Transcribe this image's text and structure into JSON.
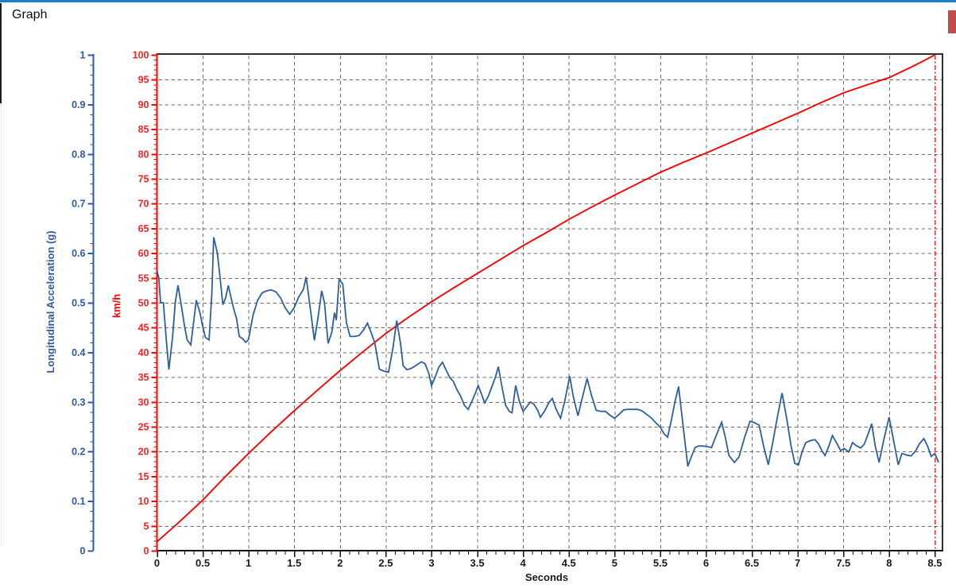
{
  "window": {
    "title": "Graph",
    "top_border_color": "#1b7cd0",
    "fragment_color": "#c24c4c"
  },
  "chart_data": {
    "type": "line",
    "title": "Graph",
    "xlabel": "Seconds",
    "x_axis": {
      "label": "Seconds",
      "lim": [
        0,
        8.5
      ],
      "tick_values": [
        0,
        0.5,
        1,
        1.5,
        2,
        2.5,
        3,
        3.5,
        4,
        4.5,
        5,
        5.5,
        6,
        6.5,
        7,
        7.5,
        8,
        8.5
      ],
      "tick_labels": [
        "0",
        "0.5",
        "1",
        "1.5",
        "2",
        "2.5",
        "3",
        "3.5",
        "4",
        "4.5",
        "5",
        "5.5",
        "6",
        "6.5",
        "7",
        "7.5",
        "8",
        "8.5"
      ],
      "minor_step": 0.1,
      "color": "#1a1a1a"
    },
    "left_axis": {
      "label": "Longitudinal Acceleration (g)",
      "lim": [
        0,
        1
      ],
      "tick_values": [
        0,
        0.1,
        0.2,
        0.3,
        0.4,
        0.5,
        0.6,
        0.7,
        0.8,
        0.9,
        1
      ],
      "tick_labels": [
        "0",
        "0.1",
        "0.2",
        "0.3",
        "0.4",
        "0.5",
        "0.6",
        "0.7",
        "0.8",
        "0.9",
        "1"
      ],
      "minor_step": 0.02,
      "color": "#2e5aa5"
    },
    "right_axis": {
      "label": "km/h",
      "lim": [
        0,
        100
      ],
      "tick_values": [
        0,
        5,
        10,
        15,
        20,
        25,
        30,
        35,
        40,
        45,
        50,
        55,
        60,
        65,
        70,
        75,
        80,
        85,
        90,
        95,
        100
      ],
      "tick_labels": [
        "0",
        "5",
        "10",
        "15",
        "20",
        "25",
        "30",
        "35",
        "40",
        "45",
        "50",
        "55",
        "60",
        "65",
        "70",
        "75",
        "80",
        "85",
        "90",
        "95",
        "100"
      ],
      "minor_step": 1,
      "color": "#ff0000"
    },
    "grid": {
      "color": "#6f6f6f",
      "dash": "4.5 3.5"
    },
    "cursor": {
      "x": 8.5,
      "color": "#ee3333"
    },
    "series": [
      {
        "name": "speed-kmh",
        "axis": "right",
        "color": "#ff0000",
        "x": [
          0,
          0.25,
          0.5,
          0.75,
          1,
          1.25,
          1.5,
          1.75,
          2,
          2.25,
          2.5,
          2.75,
          3,
          3.25,
          3.5,
          3.75,
          4,
          4.25,
          4.5,
          4.75,
          5,
          5.25,
          5.5,
          5.75,
          6,
          6.25,
          6.5,
          6.75,
          7,
          7.25,
          7.5,
          7.75,
          8,
          8.25,
          8.4,
          8.5
        ],
        "y": [
          1.8,
          5.9,
          10.2,
          15.0,
          19.6,
          24.0,
          28.2,
          32.3,
          36.3,
          40.1,
          43.8,
          47.1,
          50.2,
          53.1,
          55.9,
          58.7,
          61.5,
          64.1,
          66.8,
          69.3,
          71.7,
          74.0,
          76.3,
          78.3,
          80.2,
          82.2,
          84.2,
          86.2,
          88.2,
          90.3,
          92.3,
          93.9,
          95.4,
          97.6,
          99.0,
          100.0
        ]
      },
      {
        "name": "longitudinal-acceleration-g",
        "axis": "left",
        "color": "#2d5f9c",
        "x": [
          0,
          0.02,
          0.04,
          0.07,
          0.1,
          0.13,
          0.17,
          0.2,
          0.23,
          0.27,
          0.3,
          0.33,
          0.37,
          0.4,
          0.43,
          0.47,
          0.5,
          0.53,
          0.57,
          0.6,
          0.62,
          0.66,
          0.69,
          0.72,
          0.75,
          0.78,
          0.81,
          0.84,
          0.87,
          0.9,
          0.94,
          0.97,
          1.0,
          1.05,
          1.1,
          1.15,
          1.2,
          1.25,
          1.3,
          1.35,
          1.4,
          1.45,
          1.5,
          1.55,
          1.6,
          1.63,
          1.66,
          1.69,
          1.72,
          1.76,
          1.8,
          1.83,
          1.87,
          1.91,
          1.94,
          1.96,
          1.99,
          2.03,
          2.07,
          2.11,
          2.16,
          2.21,
          2.26,
          2.3,
          2.34,
          2.38,
          2.43,
          2.48,
          2.53,
          2.58,
          2.62,
          2.66,
          2.69,
          2.73,
          2.77,
          2.81,
          2.85,
          2.89,
          2.93,
          2.97,
          3.0,
          3.04,
          3.08,
          3.12,
          3.16,
          3.2,
          3.24,
          3.28,
          3.32,
          3.36,
          3.4,
          3.44,
          3.48,
          3.51,
          3.55,
          3.58,
          3.62,
          3.66,
          3.7,
          3.73,
          3.77,
          3.81,
          3.85,
          3.88,
          3.92,
          3.96,
          4.0,
          4.04,
          4.08,
          4.12,
          4.16,
          4.19,
          4.24,
          4.28,
          4.32,
          4.36,
          4.41,
          4.46,
          4.51,
          4.55,
          4.6,
          4.65,
          4.7,
          4.75,
          4.8,
          4.85,
          4.9,
          4.95,
          5.0,
          5.05,
          5.1,
          5.15,
          5.2,
          5.25,
          5.3,
          5.35,
          5.4,
          5.45,
          5.5,
          5.54,
          5.58,
          5.62,
          5.66,
          5.7,
          5.75,
          5.8,
          5.84,
          5.88,
          5.92,
          5.97,
          6.01,
          6.06,
          6.11,
          6.17,
          6.21,
          6.25,
          6.31,
          6.36,
          6.42,
          6.48,
          6.53,
          6.58,
          6.63,
          6.68,
          6.73,
          6.78,
          6.83,
          6.88,
          6.93,
          6.97,
          7.01,
          7.05,
          7.09,
          7.14,
          7.19,
          7.23,
          7.27,
          7.3,
          7.34,
          7.38,
          7.43,
          7.47,
          7.51,
          7.56,
          7.6,
          7.64,
          7.69,
          7.73,
          7.77,
          7.81,
          7.85,
          7.89,
          7.94,
          8.0,
          8.05,
          8.1,
          8.14,
          8.19,
          8.24,
          8.29,
          8.33,
          8.38,
          8.42,
          8.46,
          8.5,
          8.54
        ],
        "y": [
          0.565,
          0.55,
          0.5,
          0.5,
          0.43,
          0.365,
          0.43,
          0.5,
          0.535,
          0.49,
          0.455,
          0.425,
          0.415,
          0.46,
          0.505,
          0.48,
          0.452,
          0.43,
          0.425,
          0.52,
          0.632,
          0.6,
          0.55,
          0.496,
          0.51,
          0.535,
          0.51,
          0.487,
          0.468,
          0.432,
          0.427,
          0.42,
          0.426,
          0.475,
          0.505,
          0.52,
          0.524,
          0.526,
          0.522,
          0.51,
          0.49,
          0.477,
          0.49,
          0.512,
          0.527,
          0.552,
          0.51,
          0.468,
          0.424,
          0.47,
          0.524,
          0.5,
          0.418,
          0.44,
          0.48,
          0.465,
          0.547,
          0.538,
          0.46,
          0.432,
          0.432,
          0.434,
          0.446,
          0.459,
          0.44,
          0.419,
          0.366,
          0.362,
          0.36,
          0.41,
          0.464,
          0.42,
          0.373,
          0.365,
          0.367,
          0.371,
          0.376,
          0.381,
          0.377,
          0.358,
          0.333,
          0.35,
          0.37,
          0.38,
          0.364,
          0.349,
          0.341,
          0.324,
          0.311,
          0.293,
          0.285,
          0.301,
          0.318,
          0.333,
          0.314,
          0.298,
          0.311,
          0.331,
          0.351,
          0.371,
          0.33,
          0.293,
          0.281,
          0.278,
          0.333,
          0.301,
          0.281,
          0.29,
          0.3,
          0.295,
          0.283,
          0.269,
          0.283,
          0.298,
          0.307,
          0.286,
          0.267,
          0.305,
          0.352,
          0.31,
          0.272,
          0.31,
          0.347,
          0.312,
          0.283,
          0.281,
          0.281,
          0.273,
          0.267,
          0.275,
          0.284,
          0.285,
          0.285,
          0.285,
          0.282,
          0.275,
          0.268,
          0.258,
          0.249,
          0.236,
          0.229,
          0.262,
          0.3,
          0.331,
          0.25,
          0.17,
          0.19,
          0.208,
          0.211,
          0.211,
          0.21,
          0.208,
          0.232,
          0.259,
          0.229,
          0.192,
          0.178,
          0.189,
          0.228,
          0.261,
          0.258,
          0.253,
          0.21,
          0.173,
          0.22,
          0.27,
          0.318,
          0.268,
          0.21,
          0.176,
          0.173,
          0.2,
          0.218,
          0.222,
          0.224,
          0.215,
          0.2,
          0.192,
          0.21,
          0.232,
          0.216,
          0.202,
          0.206,
          0.199,
          0.218,
          0.212,
          0.207,
          0.215,
          0.235,
          0.256,
          0.21,
          0.178,
          0.222,
          0.269,
          0.221,
          0.173,
          0.196,
          0.193,
          0.191,
          0.201,
          0.215,
          0.226,
          0.211,
          0.19,
          0.196,
          0.178
        ]
      }
    ]
  }
}
